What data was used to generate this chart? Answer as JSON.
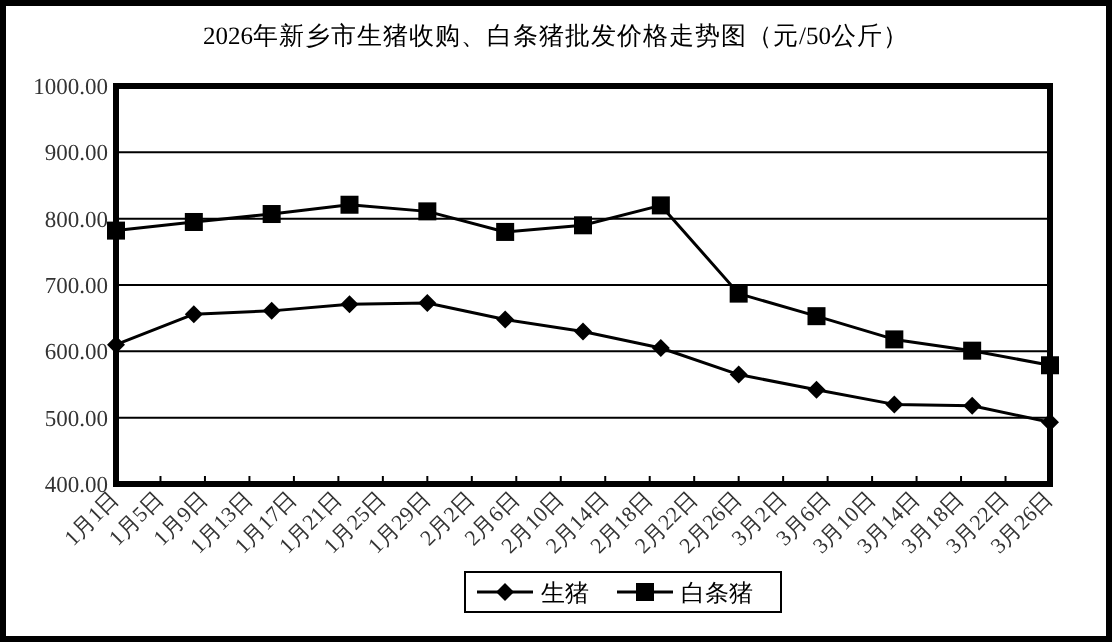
{
  "chart_data": {
    "type": "line",
    "title": "2026年新乡市生猪收购、白条猪批发价格走势图（元/50公斤）",
    "x": [
      "2026-01-01",
      "2026-01-08",
      "2026-01-15",
      "2026-01-22",
      "2026-01-29",
      "2026-02-05",
      "2026-02-12",
      "2026-02-19",
      "2026-02-26",
      "2026-03-05",
      "2026-03-12",
      "2026-03-19",
      "2026-03-26"
    ],
    "series": [
      {
        "name": "生猪",
        "color": "#000000",
        "marker": "diamond",
        "values": [
          610,
          656,
          661,
          671,
          673,
          648,
          630,
          605,
          565,
          542,
          520,
          518,
          493
        ]
      },
      {
        "name": "白条猪",
        "color": "#000000",
        "marker": "square",
        "values": [
          782,
          795,
          807,
          821,
          811,
          780,
          790,
          820,
          687,
          653,
          618,
          601,
          579
        ]
      }
    ],
    "xlim": [
      "2026-01-01",
      "2026-03-26"
    ],
    "xticks": [
      {
        "value": "2026-01-01",
        "label": "1月1日"
      },
      {
        "value": "2026-01-05",
        "label": "1月5日"
      },
      {
        "value": "2026-01-09",
        "label": "1月9日"
      },
      {
        "value": "2026-01-13",
        "label": "1月13日"
      },
      {
        "value": "2026-01-17",
        "label": "1月17日"
      },
      {
        "value": "2026-01-21",
        "label": "1月21日"
      },
      {
        "value": "2026-01-25",
        "label": "1月25日"
      },
      {
        "value": "2026-01-29",
        "label": "1月29日"
      },
      {
        "value": "2026-02-02",
        "label": "2月2日"
      },
      {
        "value": "2026-02-06",
        "label": "2月6日"
      },
      {
        "value": "2026-02-10",
        "label": "2月10日"
      },
      {
        "value": "2026-02-14",
        "label": "2月14日"
      },
      {
        "value": "2026-02-18",
        "label": "2月18日"
      },
      {
        "value": "2026-02-22",
        "label": "2月22日"
      },
      {
        "value": "2026-02-26",
        "label": "2月26日"
      },
      {
        "value": "2026-03-02",
        "label": "3月2日"
      },
      {
        "value": "2026-03-06",
        "label": "3月6日"
      },
      {
        "value": "2026-03-10",
        "label": "3月10日"
      },
      {
        "value": "2026-03-14",
        "label": "3月14日"
      },
      {
        "value": "2026-03-18",
        "label": "3月18日"
      },
      {
        "value": "2026-03-22",
        "label": "3月22日"
      },
      {
        "value": "2026-03-26",
        "label": "3月26日"
      }
    ],
    "ylim": [
      400,
      1000
    ],
    "yticks": [
      {
        "value": 400,
        "label": "400.00"
      },
      {
        "value": 500,
        "label": "500.00"
      },
      {
        "value": 600,
        "label": "600.00"
      },
      {
        "value": 700,
        "label": "700.00"
      },
      {
        "value": 800,
        "label": "800.00"
      },
      {
        "value": 900,
        "label": "900.00"
      },
      {
        "value": 1000,
        "label": "1000.00"
      }
    ],
    "grid": "y",
    "legend": "bottom",
    "line_style": "solid"
  }
}
